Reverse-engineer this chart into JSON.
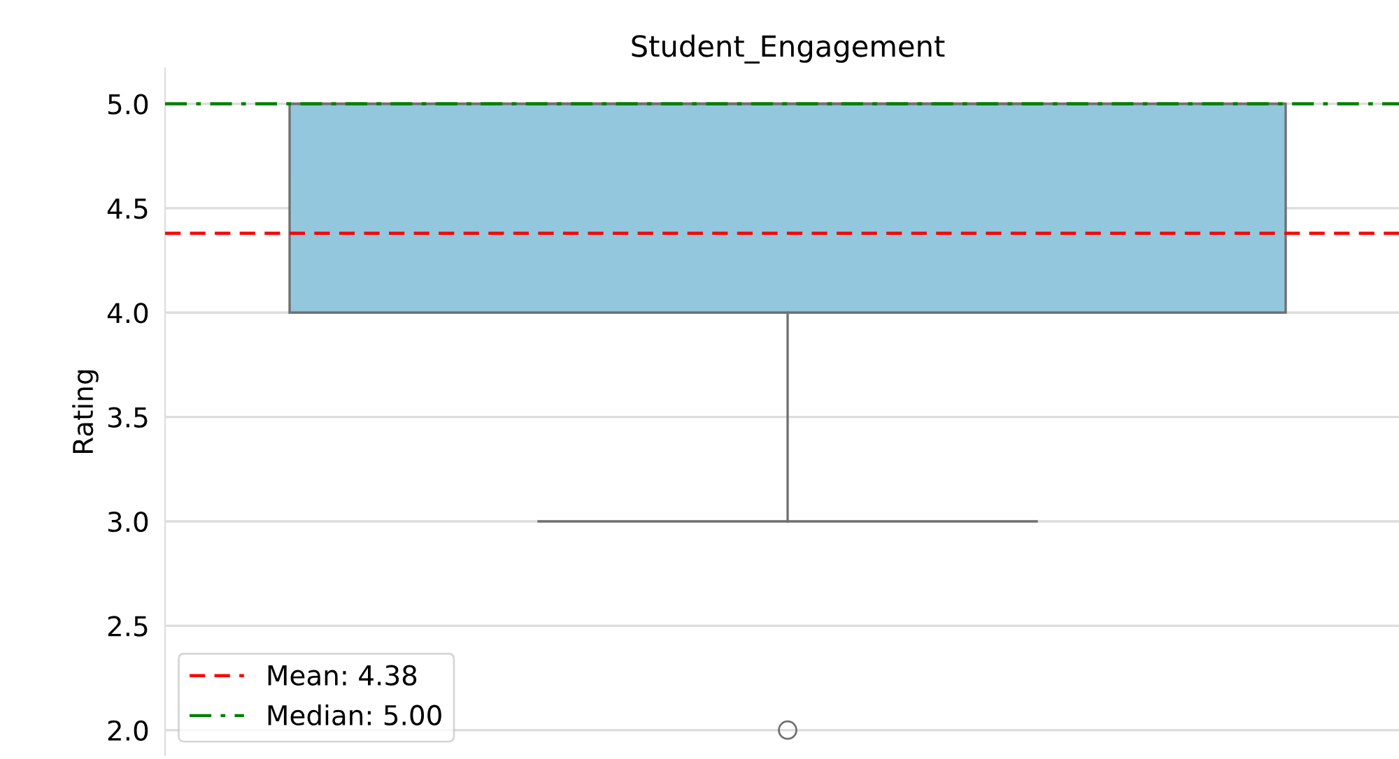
{
  "chart_data": {
    "type": "box",
    "title": "Student_Engagement",
    "ylabel": "Rating",
    "categories": [
      null
    ],
    "boxes": [
      {
        "low": 3,
        "q1": 4,
        "median": 5,
        "q3": 5,
        "high": 5,
        "outliers": [
          2
        ]
      }
    ],
    "color": "#93c7de",
    "ylim": [
      1.88,
      5.17
    ],
    "yticks": [
      {
        "value": 2.0,
        "label": "2.0"
      },
      {
        "value": 2.5,
        "label": "2.5"
      },
      {
        "value": 3.0,
        "label": "3.0"
      },
      {
        "value": 3.5,
        "label": "3.5"
      },
      {
        "value": 4.0,
        "label": "4.0"
      },
      {
        "value": 4.5,
        "label": "4.5"
      },
      {
        "value": 5.0,
        "label": "5.0"
      }
    ],
    "ref_lines": [
      {
        "axis": "y",
        "value": 4.38,
        "label": "Mean: 4.38",
        "color": "#ff0000",
        "line_style": "dashed"
      },
      {
        "axis": "y",
        "value": 5.0,
        "label": "Median: 5.00",
        "color": "#008000",
        "line_style": "dashdot"
      }
    ],
    "grid": "y",
    "legend": "bottom left"
  }
}
